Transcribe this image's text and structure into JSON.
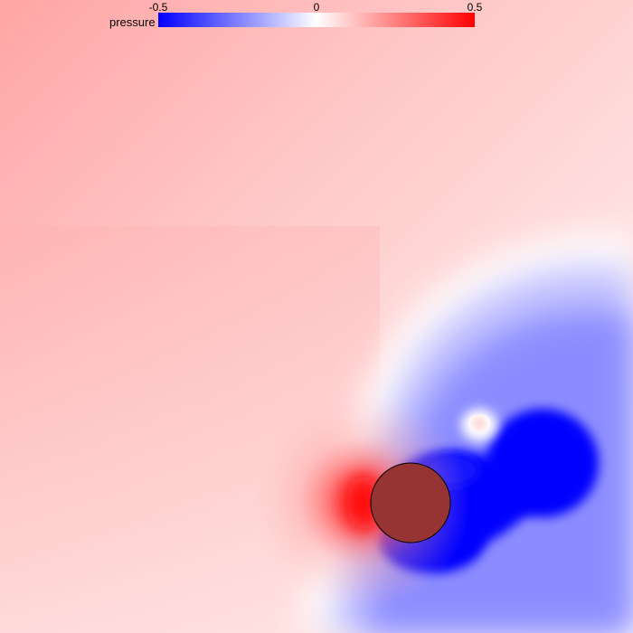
{
  "colorbar": {
    "label": "pressure",
    "min_label": "-0.5",
    "mid_label": "0",
    "max_label": "0.5",
    "min_color": "#0000ff",
    "mid_color": "#ffffff",
    "max_color": "#ff0000"
  },
  "scene": {
    "obstacle_color": "#963434",
    "obstacle_stroke": "#000000"
  }
}
